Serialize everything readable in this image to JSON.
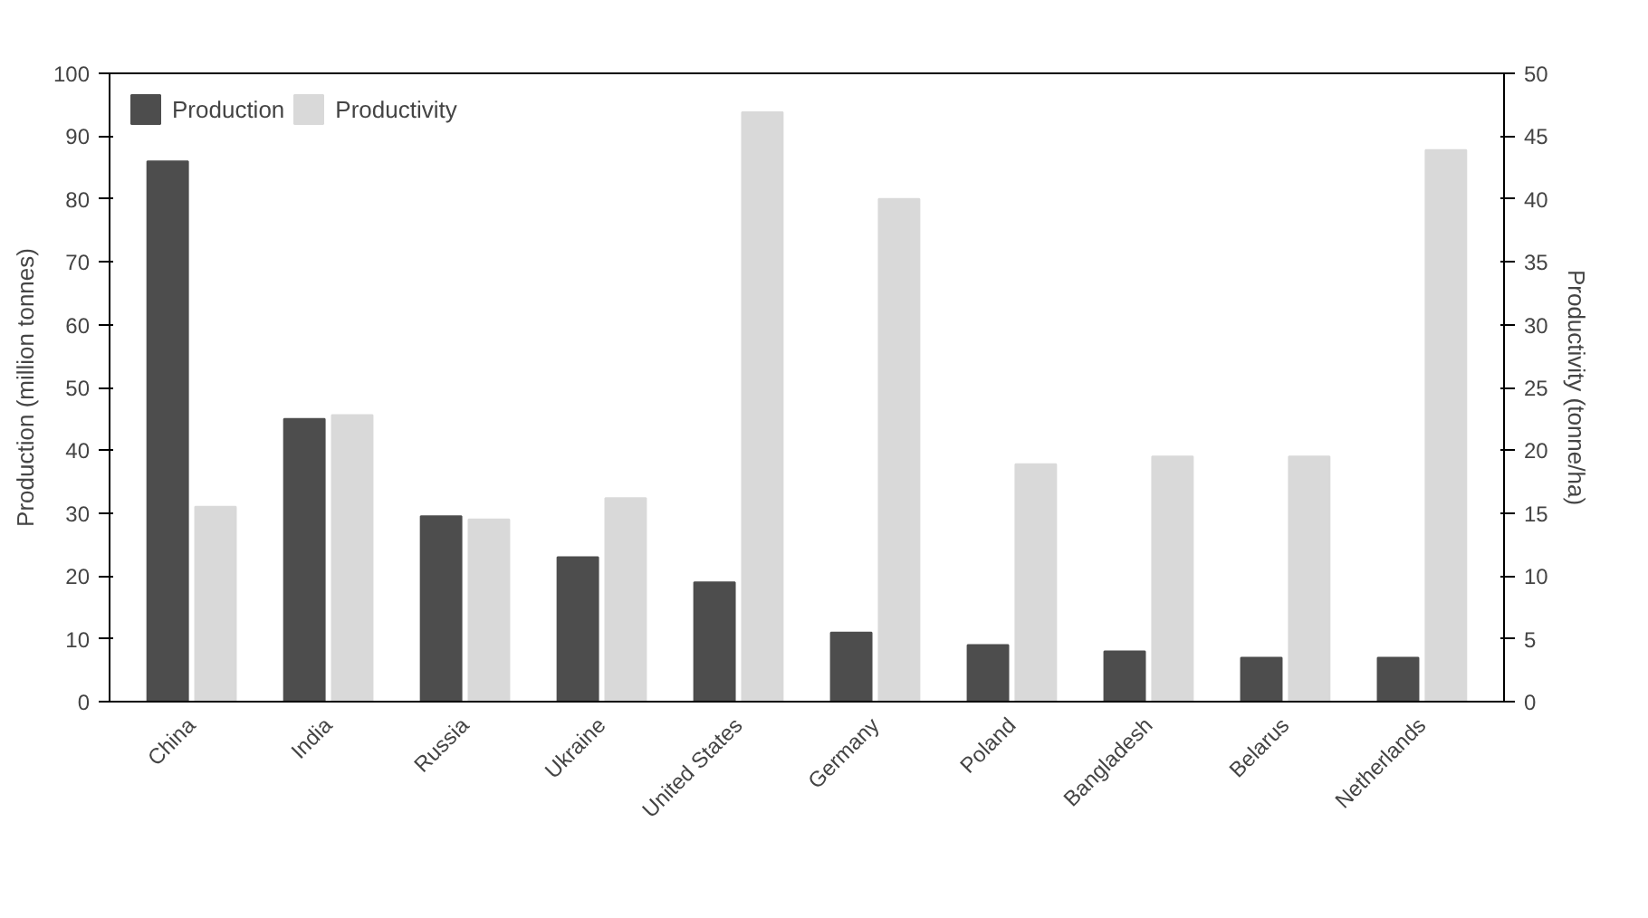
{
  "chart_data": {
    "type": "bar",
    "ylabel": "Production (million tonnes)",
    "y2label": "Productivity (tonne/ha)",
    "categories": [
      "China",
      "India",
      "Russia",
      "Ukraine",
      "United States",
      "Germany",
      "Poland",
      "Bangladesh",
      "Belarus",
      "Netherlands"
    ],
    "series": [
      {
        "name": "Production",
        "color": "#4d4d4d",
        "values": [
          86,
          45,
          29.5,
          23,
          19,
          11,
          9,
          8,
          7,
          7
        ]
      },
      {
        "name": "Productivity",
        "color": "#d9d9d9",
        "axis": "y2",
        "values": [
          15.5,
          22.8,
          14.5,
          16.2,
          46.9,
          40,
          18.9,
          19.5,
          19.5,
          43.9
        ]
      }
    ],
    "ylim": [
      0,
      100
    ],
    "yticks": [
      0,
      10,
      20,
      30,
      40,
      50,
      60,
      70,
      80,
      90,
      100
    ],
    "y2lim": [
      0,
      50
    ],
    "y2ticks": [
      0,
      5,
      10,
      15,
      20,
      25,
      30,
      35,
      40,
      45,
      50
    ],
    "grid": false,
    "legend": "top left"
  }
}
